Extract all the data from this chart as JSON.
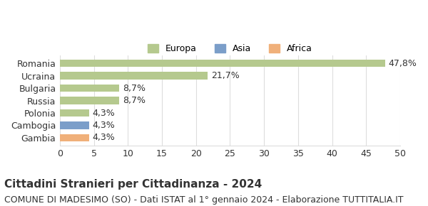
{
  "categories": [
    "Gambia",
    "Cambogia",
    "Polonia",
    "Russia",
    "Bulgaria",
    "Ucraina",
    "Romania"
  ],
  "values": [
    4.3,
    4.3,
    4.3,
    8.7,
    8.7,
    21.7,
    47.8
  ],
  "labels": [
    "4,3%",
    "4,3%",
    "4,3%",
    "8,7%",
    "8,7%",
    "21,7%",
    "47,8%"
  ],
  "colors": [
    "#f0b07a",
    "#7b9ec9",
    "#b5c98e",
    "#b5c98e",
    "#b5c98e",
    "#b5c98e",
    "#b5c98e"
  ],
  "legend_items": [
    {
      "label": "Europa",
      "color": "#b5c98e"
    },
    {
      "label": "Asia",
      "color": "#7b9ec9"
    },
    {
      "label": "Africa",
      "color": "#f0b07a"
    }
  ],
  "title": "Cittadini Stranieri per Cittadinanza - 2024",
  "subtitle": "COMUNE DI MADESIMO (SO) - Dati ISTAT al 1° gennaio 2024 - Elaborazione TUTTITALIA.IT",
  "xlim": [
    0,
    50
  ],
  "xticks": [
    0,
    5,
    10,
    15,
    20,
    25,
    30,
    35,
    40,
    45,
    50
  ],
  "background_color": "#ffffff",
  "bar_height": 0.6,
  "grid_color": "#dddddd",
  "text_color": "#333333",
  "title_fontsize": 11,
  "subtitle_fontsize": 9,
  "tick_fontsize": 9,
  "label_fontsize": 9
}
